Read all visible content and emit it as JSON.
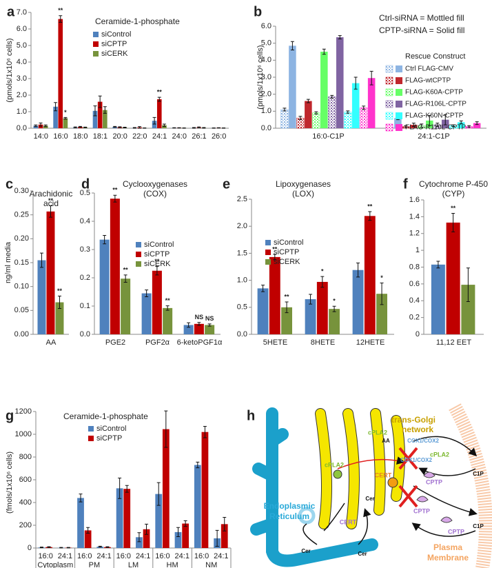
{
  "chart_data": [
    {
      "type": "bar",
      "panel": "a",
      "title": "Ceramide-1-phosphate",
      "y_label": "(pmols/1x10⁶ cells)",
      "categories": [
        "14:0",
        "16:0",
        "18:0",
        "18:1",
        "20:0",
        "22:0",
        "24:1",
        "24:0",
        "26:1",
        "26:0"
      ],
      "ylim": [
        0,
        7
      ],
      "yticks": [
        {
          "value": 0,
          "label": "0.0"
        },
        {
          "value": 1,
          "label": "1.0"
        },
        {
          "value": 2,
          "label": "2.0"
        },
        {
          "value": 3,
          "label": "3.0"
        },
        {
          "value": 4,
          "label": "4.0"
        },
        {
          "value": 5,
          "label": "5.0"
        },
        {
          "value": 6,
          "label": "6.0"
        },
        {
          "value": 7,
          "label": "7.0"
        }
      ],
      "series": [
        {
          "name": "siControl",
          "color": "#4f81bd",
          "values": [
            0.15,
            1.3,
            0.05,
            1.05,
            0.08,
            0.02,
            0.45,
            0.02,
            0.02,
            0.01
          ],
          "errors": [
            0.05,
            0.25,
            0.03,
            0.3,
            0.03,
            0.02,
            0.2,
            0.01,
            0.02,
            0.01
          ]
        },
        {
          "name": "siCPTP",
          "color": "#c00000",
          "values": [
            0.22,
            6.6,
            0.08,
            1.6,
            0.06,
            0.05,
            1.75,
            0.02,
            0.05,
            0.02
          ],
          "errors": [
            0.1,
            0.2,
            0.03,
            0.35,
            0.03,
            0.05,
            0.12,
            0.01,
            0.03,
            0.01
          ],
          "annotations": [
            null,
            "**",
            null,
            null,
            null,
            null,
            "**",
            null,
            null,
            null
          ]
        },
        {
          "name": "siCERK",
          "color": "#77933c",
          "values": [
            0.15,
            0.6,
            0.05,
            1.1,
            0.04,
            0.01,
            0.18,
            0.01,
            0.02,
            0.01
          ],
          "errors": [
            0.05,
            0.05,
            0.02,
            0.2,
            0.02,
            0.01,
            0.07,
            0.01,
            0.02,
            0.01
          ],
          "annotations": [
            null,
            "*",
            null,
            null,
            null,
            null,
            null,
            null,
            null,
            null
          ]
        }
      ]
    },
    {
      "type": "bar",
      "panel": "b",
      "y_label": "(pmols/1x10⁶ cells)",
      "notes": [
        "Ctrl-siRNA = Mottled fill",
        "CPTP-siRNA = Solid fill"
      ],
      "legend_title": "Rescue Construct",
      "categories": [
        "16:0-C1P",
        "24:1-C1P"
      ],
      "ylim": [
        0,
        6
      ],
      "yticks": [
        {
          "value": 0,
          "label": "0.0"
        },
        {
          "value": 1,
          "label": "1.0"
        },
        {
          "value": 2,
          "label": "2.0"
        },
        {
          "value": 3,
          "label": "3.0"
        },
        {
          "value": 4,
          "label": "4.0"
        },
        {
          "value": 5,
          "label": "5.0"
        },
        {
          "value": 6,
          "label": "6.0"
        }
      ],
      "series": [
        {
          "name": "Ctrl FLAG-CMV",
          "color": "#8db4e2",
          "ctrl_values": [
            1.1,
            0.05
          ],
          "ctrl_errors": [
            0.08,
            0.03
          ],
          "values": [
            4.85,
            0.6
          ],
          "errors": [
            0.25,
            0.1
          ]
        },
        {
          "name": "FLAG-wtCPTP",
          "color": "#c0272d",
          "ctrl_values": [
            0.6,
            0.1
          ],
          "ctrl_errors": [
            0.1,
            0.05
          ],
          "values": [
            1.6,
            0.2
          ],
          "errors": [
            0.1,
            0.1
          ]
        },
        {
          "name": "FLAG-K60A-CPTP",
          "color": "#66ff66",
          "ctrl_values": [
            0.9,
            0.15
          ],
          "ctrl_errors": [
            0.07,
            0.1
          ],
          "values": [
            4.5,
            0.45
          ],
          "errors": [
            0.15,
            0.3
          ]
        },
        {
          "name": "FLAG-R106L-CPTP",
          "color": "#8064a2",
          "ctrl_values": [
            1.85,
            0.2
          ],
          "ctrl_errors": [
            0.08,
            0.1
          ],
          "values": [
            5.35,
            0.5
          ],
          "errors": [
            0.1,
            0.3
          ]
        },
        {
          "name": "FLAG-K60N-CPTP",
          "color": "#33ffff",
          "ctrl_values": [
            0.95,
            0.15
          ],
          "ctrl_errors": [
            0.07,
            0.05
          ],
          "values": [
            2.65,
            0.35
          ],
          "errors": [
            0.35,
            0.08
          ]
        },
        {
          "name": "FLAG-R110L-CPTP",
          "color": "#ff33cc",
          "ctrl_values": [
            1.2,
            0.1
          ],
          "ctrl_errors": [
            0.1,
            0.05
          ],
          "values": [
            2.95,
            0.3
          ],
          "errors": [
            0.4,
            0.08
          ]
        }
      ]
    },
    {
      "type": "bar",
      "panel": "c",
      "title": "Arachidonic",
      "subtitle": "acid",
      "y_label": "ng/ml media",
      "categories": [
        "AA"
      ],
      "ylim": [
        0,
        0.3
      ],
      "yticks": [
        {
          "value": 0,
          "label": "0.00"
        },
        {
          "value": 0.05,
          "label": "0.05"
        },
        {
          "value": 0.1,
          "label": "0.10"
        },
        {
          "value": 0.15,
          "label": "0.15"
        },
        {
          "value": 0.2,
          "label": "0.20"
        },
        {
          "value": 0.25,
          "label": "0.25"
        },
        {
          "value": 0.3,
          "label": "0.30"
        }
      ],
      "series": [
        {
          "name": "siControl",
          "color": "#4f81bd",
          "values": [
            0.155
          ],
          "errors": [
            0.015
          ]
        },
        {
          "name": "siCPTP",
          "color": "#c00000",
          "values": [
            0.257
          ],
          "errors": [
            0.012
          ],
          "annotations": [
            "**"
          ]
        },
        {
          "name": "siCERK",
          "color": "#77933c",
          "values": [
            0.067
          ],
          "errors": [
            0.013
          ],
          "annotations": [
            "**"
          ]
        }
      ]
    },
    {
      "type": "bar",
      "panel": "d",
      "title": "Cyclooxygenases",
      "subtitle": "(COX)",
      "categories": [
        "PGE2",
        "PGF2α",
        "6-ketoPGF1α"
      ],
      "ylim": [
        0,
        0.5
      ],
      "yticks": [
        {
          "value": 0,
          "label": "0.0"
        },
        0.1,
        0.2,
        0.3,
        0.4,
        0.5
      ],
      "series": [
        {
          "name": "siControl",
          "color": "#4f81bd",
          "values": [
            0.335,
            0.145,
            0.033
          ],
          "errors": [
            0.015,
            0.012,
            0.008
          ]
        },
        {
          "name": "siCPTP",
          "color": "#c00000",
          "values": [
            0.48,
            0.225,
            0.037
          ],
          "errors": [
            0.012,
            0.015,
            0.005
          ],
          "annotations": [
            "**",
            "**",
            "NS"
          ]
        },
        {
          "name": "siCERK",
          "color": "#77933c",
          "values": [
            0.197,
            0.093,
            0.033
          ],
          "errors": [
            0.013,
            0.008,
            0.004
          ],
          "annotations": [
            "**",
            "**",
            "NS"
          ]
        }
      ]
    },
    {
      "type": "bar",
      "panel": "e",
      "title": "Lipoxygenases",
      "subtitle": "(LOX)",
      "categories": [
        "5HETE",
        "8HETE",
        "12HETE"
      ],
      "ylim": [
        0,
        2.5
      ],
      "yticks": [
        {
          "value": 0,
          "label": "0.0"
        },
        0.5,
        {
          "value": 1,
          "label": "1.0"
        },
        1.5,
        {
          "value": 2,
          "label": "2.0"
        },
        2.5
      ],
      "series": [
        {
          "name": "siControl",
          "color": "#4f81bd",
          "values": [
            0.85,
            0.65,
            1.19
          ],
          "errors": [
            0.06,
            0.09,
            0.13
          ]
        },
        {
          "name": "siCPTP",
          "color": "#c00000",
          "values": [
            1.43,
            0.97,
            2.19
          ],
          "errors": [
            0.05,
            0.1,
            0.08
          ],
          "annotations": [
            "**",
            "*",
            "**"
          ]
        },
        {
          "name": "siCERK",
          "color": "#77933c",
          "values": [
            0.5,
            0.47,
            0.75
          ],
          "errors": [
            0.1,
            0.05,
            0.2
          ],
          "annotations": [
            "**",
            "*",
            "*"
          ]
        }
      ]
    },
    {
      "type": "bar",
      "panel": "f",
      "title": "Cytochrome P-450",
      "subtitle": "(CYP)",
      "categories": [
        "11,12 EET"
      ],
      "ylim": [
        0,
        1.6
      ],
      "yticks": [
        0,
        0.2,
        0.4,
        0.6,
        0.8,
        1,
        1.2,
        1.4,
        1.6
      ],
      "series": [
        {
          "name": "siControl",
          "color": "#4f81bd",
          "values": [
            0.83
          ],
          "errors": [
            0.04
          ]
        },
        {
          "name": "siCPTP",
          "color": "#c00000",
          "values": [
            1.33
          ],
          "errors": [
            0.11
          ],
          "annotations": [
            "**"
          ]
        },
        {
          "name": "siCERK",
          "color": "#77933c",
          "values": [
            0.59
          ],
          "errors": [
            0.2
          ]
        }
      ]
    },
    {
      "type": "bar",
      "panel": "g",
      "title": "Ceramide-1-phosphate",
      "y_label": "(fmols/1x10⁶ cells)",
      "categories": [
        "16:0",
        "24:1",
        "16:0",
        "24:1",
        "16:0",
        "24:1",
        "16:0",
        "24:1",
        "16:0",
        "24:1"
      ],
      "groups": [
        "Cytoplasm",
        "PM",
        "LM",
        "HM",
        "NM"
      ],
      "ylim": [
        0,
        1200
      ],
      "yticks": [
        0,
        200,
        400,
        600,
        800,
        1000,
        1200
      ],
      "series": [
        {
          "name": "siControl",
          "color": "#4f81bd",
          "values": [
            5,
            3,
            440,
            12,
            525,
            95,
            475,
            140,
            730,
            85
          ],
          "errors": [
            3,
            2,
            35,
            4,
            90,
            40,
            100,
            40,
            25,
            70
          ]
        },
        {
          "name": "siCPTP",
          "color": "#c00000",
          "values": [
            8,
            3,
            155,
            8,
            520,
            165,
            1045,
            215,
            1020,
            210
          ],
          "errors": [
            3,
            2,
            25,
            3,
            30,
            45,
            160,
            25,
            50,
            60
          ]
        }
      ]
    }
  ],
  "diagram": {
    "panel": "h",
    "labels": [
      "trans-Golgi",
      "network",
      "Endoplasmic",
      "Reticulum",
      "Plasma",
      "Membrane",
      "CPTP",
      "CPTP",
      "CPTP",
      "CERT",
      "CERT",
      "cPLA2",
      "cPLA2",
      "cPLA2",
      "COX1/COX2",
      "COX1/COX2",
      "C1P",
      "C1P",
      "AA",
      "Cer",
      "Cer",
      "Cer"
    ]
  }
}
